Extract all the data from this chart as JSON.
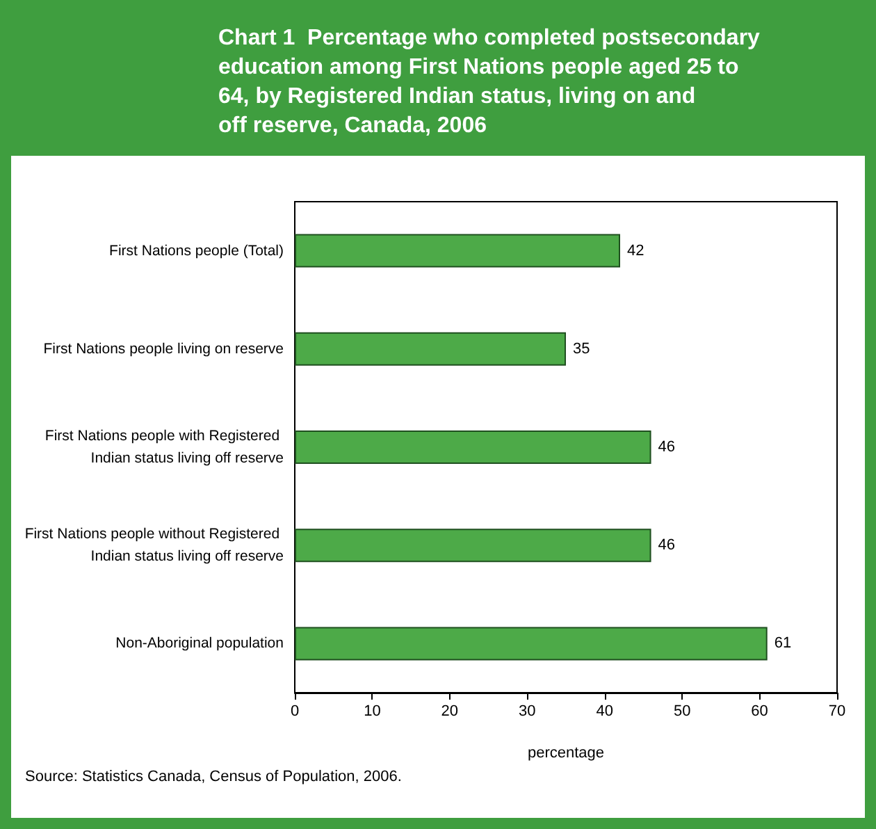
{
  "chart_data": {
    "type": "bar",
    "orientation": "horizontal",
    "title": "Chart 1  Percentage who completed postsecondary education among First Nations people aged 25 to 64, by Registered Indian status, living on and off reserve, Canada, 2006",
    "categories": [
      "First Nations people (Total)",
      "First Nations people living on reserve",
      "First Nations people with Registered Indian status living off reserve",
      "First Nations people without Registered Indian status living off reserve",
      "Non-Aboriginal population"
    ],
    "values": [
      42,
      35,
      46,
      46,
      61
    ],
    "color": "#4daa48",
    "xlim": [
      0,
      70
    ],
    "xticks": [
      0,
      10,
      20,
      30,
      40,
      50,
      60,
      70
    ],
    "xlabel": "percentage",
    "data_labels": true,
    "grid": false,
    "annotations": [
      "Source: Statistics Canada, Census of Population, 2006."
    ]
  }
}
